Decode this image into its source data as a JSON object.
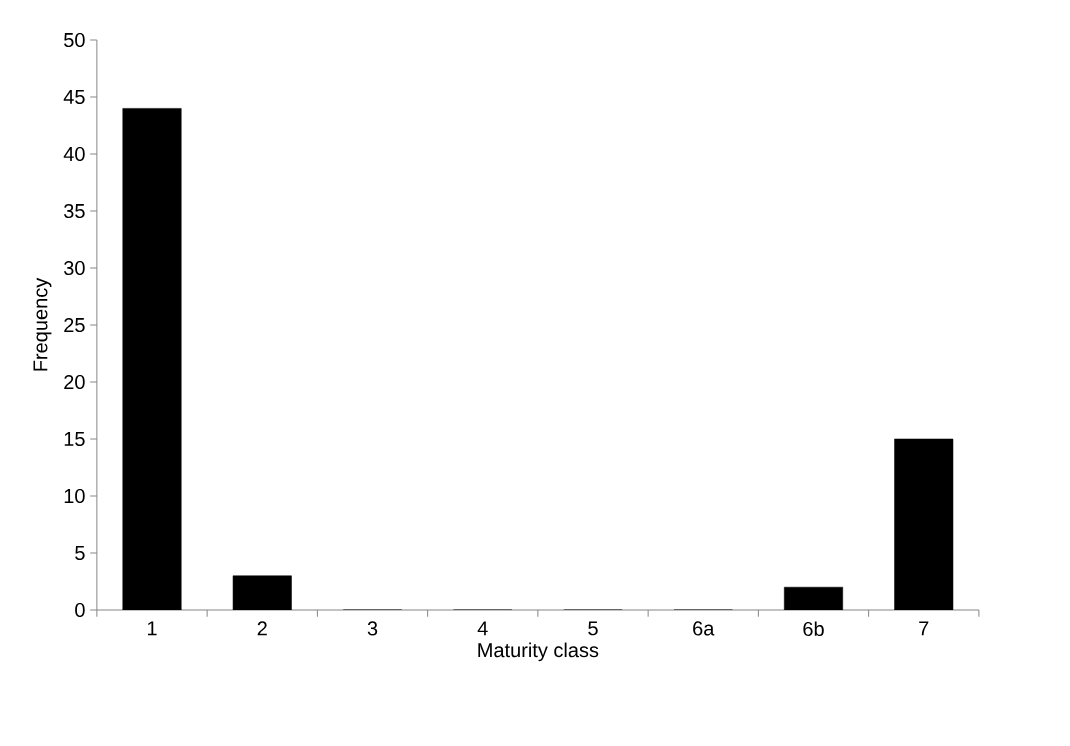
{
  "chart_data": {
    "type": "bar",
    "xlabel": "Maturity class",
    "ylabel": "Frequency",
    "categories": [
      "1",
      "2",
      "3",
      "4",
      "5",
      "6a",
      "6b",
      "7"
    ],
    "values": [
      44,
      3,
      0,
      0,
      0,
      0,
      2,
      15
    ],
    "color": "#000000",
    "ylim": [
      0,
      50
    ],
    "yticks": [
      0,
      5,
      10,
      15,
      20,
      25,
      30,
      35,
      40,
      45,
      50
    ],
    "grid": false
  }
}
